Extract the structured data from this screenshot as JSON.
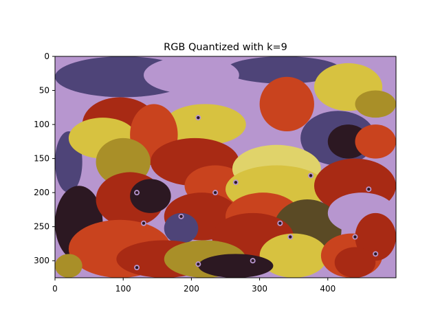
{
  "chart_data": {
    "type": "heatmap",
    "title": "RGB Quantized with k=9",
    "xlabel": "",
    "ylabel": "",
    "image_size": [
      500,
      325
    ],
    "xlim": [
      0,
      500
    ],
    "ylim": [
      325,
      0
    ],
    "xticks": [
      0,
      100,
      200,
      300,
      400
    ],
    "yticks": [
      0,
      50,
      100,
      150,
      200,
      250,
      300
    ],
    "grid": false,
    "legend": "none",
    "palette": {
      "lavender": "#b796cf",
      "slate_purple": "#4e4478",
      "yellow": "#d7c240",
      "olive": "#a98f28",
      "orange_red": "#c9431e",
      "red": "#a82a14",
      "dark_maroon": "#2c1822",
      "dark_olive": "#5a4a25",
      "pale_yellow": "#e0d36a"
    },
    "regions": [
      {
        "color": "lavender",
        "x": [
          0,
          500
        ],
        "y": [
          0,
          325
        ]
      },
      {
        "color": "slate_purple",
        "x": [
          0,
          200
        ],
        "y": [
          0,
          60
        ]
      },
      {
        "color": "slate_purple",
        "x": [
          250,
          420
        ],
        "y": [
          0,
          40
        ]
      },
      {
        "color": "lavender",
        "x": [
          130,
          270
        ],
        "y": [
          0,
          55
        ]
      },
      {
        "color": "slate_purple",
        "x": [
          0,
          40
        ],
        "y": [
          110,
          200
        ]
      },
      {
        "color": "yellow",
        "x": [
          380,
          480
        ],
        "y": [
          10,
          80
        ]
      },
      {
        "color": "olive",
        "x": [
          440,
          500
        ],
        "y": [
          50,
          90
        ]
      },
      {
        "color": "orange_red",
        "x": [
          300,
          380
        ],
        "y": [
          30,
          110
        ]
      },
      {
        "color": "red",
        "x": [
          40,
          150
        ],
        "y": [
          60,
          140
        ]
      },
      {
        "color": "yellow",
        "x": [
          160,
          280
        ],
        "y": [
          70,
          130
        ]
      },
      {
        "color": "yellow",
        "x": [
          20,
          120
        ],
        "y": [
          90,
          150
        ]
      },
      {
        "color": "slate_purple",
        "x": [
          360,
          470
        ],
        "y": [
          80,
          160
        ]
      },
      {
        "color": "dark_maroon",
        "x": [
          400,
          460
        ],
        "y": [
          100,
          150
        ]
      },
      {
        "color": "orange_red",
        "x": [
          110,
          180
        ],
        "y": [
          70,
          160
        ]
      },
      {
        "color": "olive",
        "x": [
          60,
          140
        ],
        "y": [
          120,
          190
        ]
      },
      {
        "color": "red",
        "x": [
          140,
          270
        ],
        "y": [
          120,
          190
        ]
      },
      {
        "color": "orange_red",
        "x": [
          190,
          280
        ],
        "y": [
          160,
          220
        ]
      },
      {
        "color": "pale_yellow",
        "x": [
          260,
          390
        ],
        "y": [
          130,
          200
        ]
      },
      {
        "color": "yellow",
        "x": [
          250,
          400
        ],
        "y": [
          160,
          230
        ]
      },
      {
        "color": "red",
        "x": [
          380,
          500
        ],
        "y": [
          150,
          230
        ]
      },
      {
        "color": "orange_red",
        "x": [
          440,
          500
        ],
        "y": [
          100,
          150
        ]
      },
      {
        "color": "dark_maroon",
        "x": [
          0,
          70
        ],
        "y": [
          190,
          300
        ]
      },
      {
        "color": "red",
        "x": [
          60,
          160
        ],
        "y": [
          170,
          250
        ]
      },
      {
        "color": "dark_maroon",
        "x": [
          110,
          170
        ],
        "y": [
          180,
          230
        ]
      },
      {
        "color": "red",
        "x": [
          160,
          270
        ],
        "y": [
          200,
          270
        ]
      },
      {
        "color": "orange_red",
        "x": [
          250,
          360
        ],
        "y": [
          200,
          270
        ]
      },
      {
        "color": "dark_olive",
        "x": [
          320,
          420
        ],
        "y": [
          210,
          300
        ]
      },
      {
        "color": "lavender",
        "x": [
          400,
          500
        ],
        "y": [
          200,
          260
        ]
      },
      {
        "color": "slate_purple",
        "x": [
          160,
          210
        ],
        "y": [
          230,
          275
        ]
      },
      {
        "color": "red",
        "x": [
          230,
          350
        ],
        "y": [
          230,
          300
        ]
      },
      {
        "color": "orange_red",
        "x": [
          20,
          170
        ],
        "y": [
          240,
          325
        ]
      },
      {
        "color": "red",
        "x": [
          90,
          230
        ],
        "y": [
          270,
          325
        ]
      },
      {
        "color": "olive",
        "x": [
          160,
          280
        ],
        "y": [
          270,
          325
        ]
      },
      {
        "color": "yellow",
        "x": [
          300,
          400
        ],
        "y": [
          260,
          325
        ]
      },
      {
        "color": "orange_red",
        "x": [
          390,
          480
        ],
        "y": [
          260,
          325
        ]
      },
      {
        "color": "red",
        "x": [
          440,
          500
        ],
        "y": [
          230,
          300
        ]
      },
      {
        "color": "dark_maroon",
        "x": [
          210,
          320
        ],
        "y": [
          290,
          325
        ]
      },
      {
        "color": "red",
        "x": [
          410,
          470
        ],
        "y": [
          280,
          325
        ]
      },
      {
        "color": "olive",
        "x": [
          0,
          40
        ],
        "y": [
          290,
          325
        ]
      }
    ],
    "eyes": [
      {
        "x": 210,
        "y": 90
      },
      {
        "x": 235,
        "y": 200
      },
      {
        "x": 185,
        "y": 235
      },
      {
        "x": 120,
        "y": 200
      },
      {
        "x": 130,
        "y": 245
      },
      {
        "x": 265,
        "y": 185
      },
      {
        "x": 330,
        "y": 245
      },
      {
        "x": 375,
        "y": 175
      },
      {
        "x": 440,
        "y": 265
      },
      {
        "x": 460,
        "y": 195
      },
      {
        "x": 345,
        "y": 265
      },
      {
        "x": 210,
        "y": 305
      },
      {
        "x": 120,
        "y": 310
      },
      {
        "x": 290,
        "y": 300
      },
      {
        "x": 470,
        "y": 290
      }
    ]
  }
}
